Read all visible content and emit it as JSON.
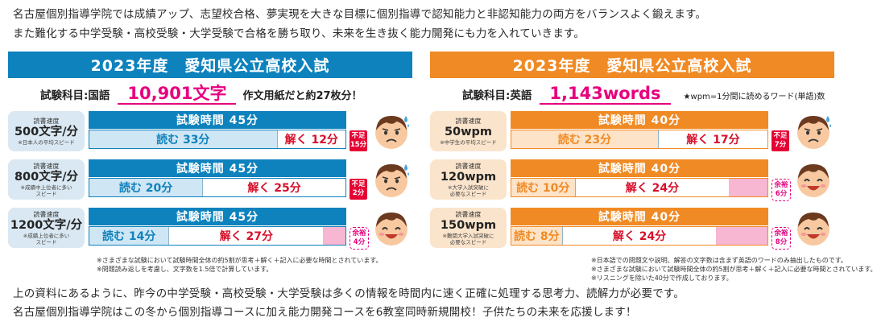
{
  "intro": {
    "line1": "名古屋個別指導学院では成績アップ、志望校合格、夢実現を大きな目標に個別指導で認知能力と非認知能力の両方をバランスよく鍛えます。",
    "line2": "また難化する中学受験・高校受験・大学受験で合格を勝ち取り、未来を生き抜く能力開発にも力を入れていきます。"
  },
  "panels": [
    {
      "title": "2023年度　愛知県公立高校入試",
      "accent": "#0e82bd",
      "light": "#cfe6f4",
      "speed_bg": "#d9e8f2",
      "subject_label": "試験科目:国語",
      "subject_value": "10,901文字",
      "subject_note": "作文用紙だと約27枚分！",
      "rows": [
        {
          "speed_caption": "読書速度",
          "speed": "500文字/分",
          "speed_note": "※日本人の平均スピード",
          "total": "試験時間 45分",
          "read": "読む 33分",
          "solve": "解く 12分",
          "read_min": 33,
          "solve_min": 12,
          "slack_min": 0,
          "tag_kind": "short",
          "tag": "不足\n15分",
          "face": "worried"
        },
        {
          "speed_caption": "読書速度",
          "speed": "800文字/分",
          "speed_note": "※成績中上位者に多い\nスピード",
          "total": "試験時間 45分",
          "read": "読む 20分",
          "solve": "解く 25分",
          "read_min": 20,
          "solve_min": 25,
          "slack_min": 0,
          "tag_kind": "short",
          "tag": "不足\n2分",
          "face": "worried"
        },
        {
          "speed_caption": "読書速度",
          "speed": "1200文字/分",
          "speed_note": "※成績上位者に多い\nスピード",
          "total": "試験時間 45分",
          "read": "読む 14分",
          "solve": "解く 27分",
          "read_min": 14,
          "solve_min": 27,
          "slack_min": 4,
          "tag_kind": "spare",
          "tag": "余裕\n4分",
          "face": "happy"
        }
      ],
      "footnotes": [
        "※さまざまな試験において試験時間全体の約5割が思考＋解く＋記入に必要な時間とされています。",
        "※問題読み返しを考慮し、文字数を1.5倍で計算しています。"
      ]
    },
    {
      "title": "2023年度　愛知県公立高校入試",
      "accent": "#f08a24",
      "light": "#fde3c8",
      "speed_bg": "#fbe4cc",
      "subject_label": "試験科目:英語",
      "subject_value": "1,143words",
      "subject_note": "★wpm=1分間に読めるワード(単語)数",
      "rows": [
        {
          "speed_caption": "読書速度",
          "speed": "50wpm",
          "speed_note": "※中学生の平均スピード",
          "total": "試験時間 40分",
          "read": "読む 23分",
          "solve": "解く 17分",
          "read_min": 23,
          "solve_min": 17,
          "slack_min": 0,
          "tag_kind": "short",
          "tag": "不足\n7分",
          "face": "worried"
        },
        {
          "speed_caption": "読書速度",
          "speed": "120wpm",
          "speed_note": "※大学入試突破に\n必要なスピード",
          "total": "試験時間 40分",
          "read": "読む 10分",
          "solve": "解く 24分",
          "read_min": 10,
          "solve_min": 24,
          "slack_min": 6,
          "tag_kind": "spare",
          "tag": "余裕\n6分",
          "face": "happy"
        },
        {
          "speed_caption": "読書速度",
          "speed": "150wpm",
          "speed_note": "※難関大学入試突破に\n必要なスピード",
          "total": "試験時間 40分",
          "read": "読む 8分",
          "solve": "解く 24分",
          "read_min": 8,
          "solve_min": 24,
          "slack_min": 8,
          "tag_kind": "spare",
          "tag": "余裕\n8分",
          "face": "happy"
        }
      ],
      "footnotes": [
        "※日本語での問題文や説明、解答の文字数は含まず英語のワードのみ抽出したものです。",
        "※さまざまな試験において試験時間全体の約5割が思考＋解く＋記入に必要な時間とされています。",
        "※リスニングを除いた40分で作成しております。"
      ]
    }
  ],
  "outro": {
    "line1": "上の資料にあるように、昨今の中学受験・高校受験・大学受験は多くの情報を時間内に速く正確に処理する思考力、読解力が必要です。",
    "line2": "名古屋個別指導学院はこの冬から個別指導コースに加え能力開発コースを6教室同時新規開校！子供たちの未来を応援します！"
  }
}
